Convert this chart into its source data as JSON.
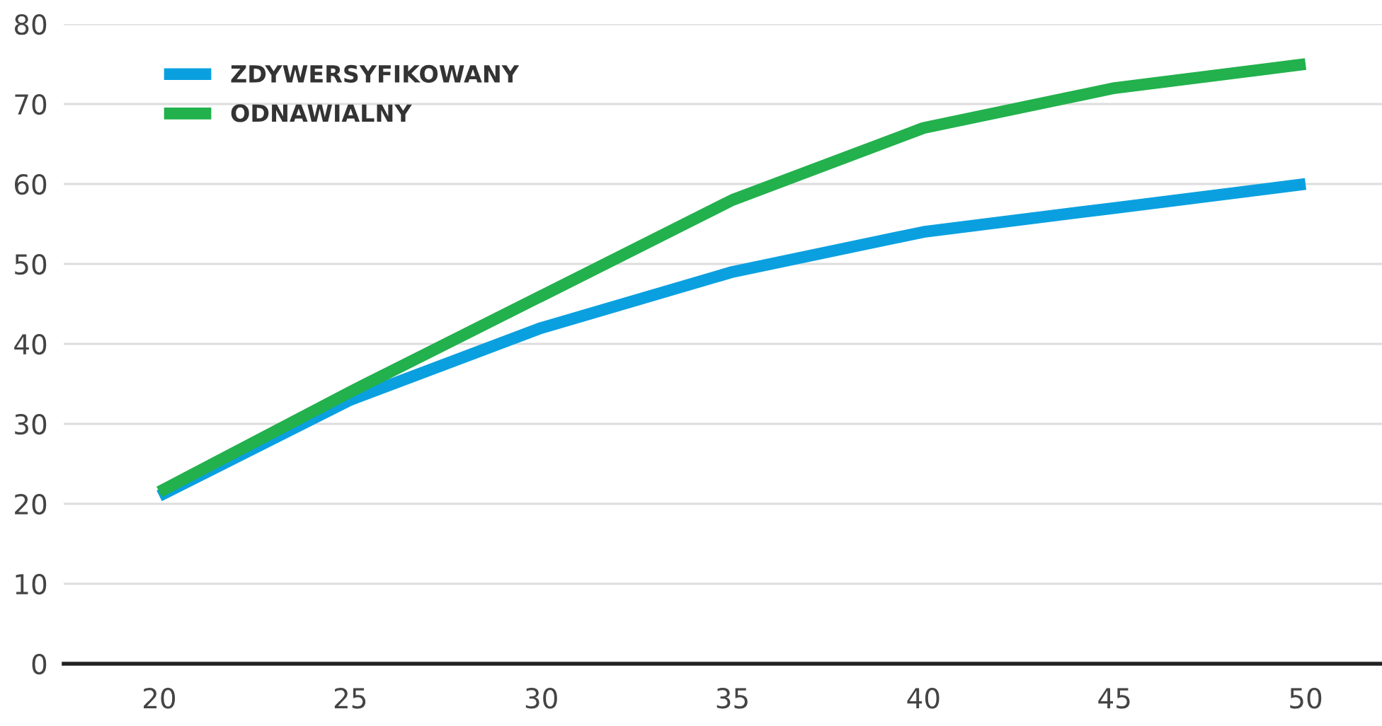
{
  "chart_data": {
    "type": "line",
    "x": [
      20,
      25,
      30,
      35,
      40,
      45,
      50
    ],
    "series": [
      {
        "name": "ZDYWERSYFIKOWANY",
        "color": "#0aa0e0",
        "values": [
          21,
          33,
          42,
          49,
          54,
          57,
          60
        ]
      },
      {
        "name": "ODNAWIALNY",
        "color": "#22b14c",
        "values": [
          21.5,
          34,
          46,
          58,
          67,
          72,
          75
        ]
      }
    ],
    "xlim": [
      17.5,
      52
    ],
    "xticks": [
      20,
      25,
      30,
      35,
      40,
      45,
      50
    ],
    "ylim": [
      0,
      80
    ],
    "yticks": [
      0,
      10,
      20,
      30,
      40,
      50,
      60,
      70,
      80
    ],
    "grid": "y",
    "legend": "top left",
    "marker": "none",
    "line_style": "solid"
  }
}
